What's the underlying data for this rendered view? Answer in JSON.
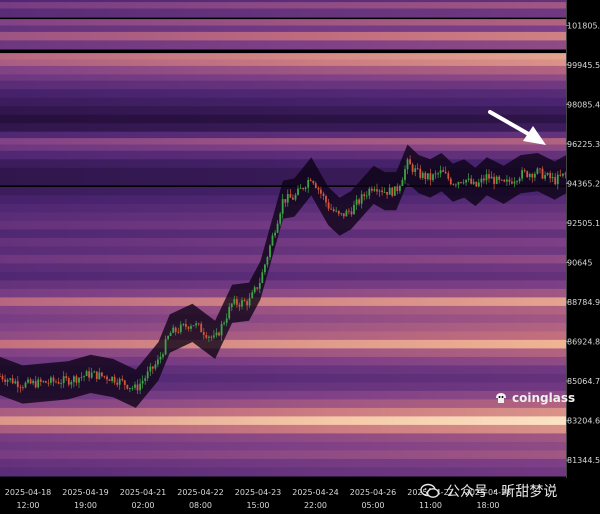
{
  "chart_data": {
    "type": "heatmap",
    "title": "",
    "xlabel": "",
    "ylabel": "",
    "ylim": [
      80500,
      103000
    ],
    "y_ticks": [
      "101805.6",
      "99945.5",
      "98085.4",
      "96225.3",
      "94365.2",
      "92505.1",
      "90645",
      "88784.9",
      "86924.8",
      "85064.7",
      "83204.6",
      "81344.5"
    ],
    "x_ticks": [
      {
        "date": "2025-04-18",
        "time": "12:00"
      },
      {
        "date": "2025-04-19",
        "time": "19:00"
      },
      {
        "date": "2025-04-21",
        "time": "02:00"
      },
      {
        "date": "2025-04-22",
        "time": "08:00"
      },
      {
        "date": "2025-04-23",
        "time": "15:00"
      },
      {
        "date": "2025-04-24",
        "time": "22:00"
      },
      {
        "date": "2025-04-26",
        "time": "05:00"
      },
      {
        "date": "2025-04-27",
        "time": "11:00"
      },
      {
        "date": "2025-04-28",
        "time": "18:00"
      }
    ],
    "price_series": {
      "name": "",
      "x": [
        0,
        4,
        8,
        12,
        16,
        20,
        24,
        28,
        30,
        34,
        38,
        41,
        44,
        46,
        48,
        50,
        52,
        55,
        58,
        60,
        62,
        66,
        68,
        70,
        72,
        74,
        76,
        78,
        80,
        82,
        84,
        86,
        89,
        92,
        95,
        98,
        100
      ],
      "y": [
        85300,
        84900,
        85000,
        85100,
        85400,
        85200,
        84700,
        86000,
        87300,
        87800,
        87000,
        88700,
        88800,
        89800,
        91700,
        93600,
        93700,
        94700,
        93300,
        92800,
        93100,
        94300,
        94000,
        94000,
        95300,
        94800,
        94600,
        94900,
        94400,
        94600,
        94200,
        94700,
        94300,
        94800,
        94900,
        94500,
        94800
      ]
    },
    "liquidation_bands": [
      {
        "price": 103000,
        "intensity": 0.3
      },
      {
        "price": 102700,
        "intensity": 0.5
      },
      {
        "price": 102400,
        "intensity": 0.35
      },
      {
        "price": 101900,
        "intensity": 0.55
      },
      {
        "price": 101600,
        "intensity": 0.4
      },
      {
        "price": 101300,
        "intensity": 0.65
      },
      {
        "price": 100900,
        "intensity": 0.45
      },
      {
        "price": 100300,
        "intensity": 0.75
      },
      {
        "price": 100000,
        "intensity": 0.7
      },
      {
        "price": 99700,
        "intensity": 0.55
      },
      {
        "price": 99300,
        "intensity": 0.45
      },
      {
        "price": 99000,
        "intensity": 0.35
      },
      {
        "price": 98600,
        "intensity": 0.25
      },
      {
        "price": 98200,
        "intensity": 0.2
      },
      {
        "price": 97800,
        "intensity": 0.15
      },
      {
        "price": 97400,
        "intensity": 0.1
      },
      {
        "price": 97000,
        "intensity": 0.15
      },
      {
        "price": 96600,
        "intensity": 0.3
      },
      {
        "price": 96300,
        "intensity": 0.55
      },
      {
        "price": 96000,
        "intensity": 0.45
      },
      {
        "price": 95700,
        "intensity": 0.3
      },
      {
        "price": 95300,
        "intensity": 0.2
      },
      {
        "price": 94900,
        "intensity": 0.15
      },
      {
        "price": 94500,
        "intensity": 0.15
      },
      {
        "price": 94000,
        "intensity": 0.2
      },
      {
        "price": 93600,
        "intensity": 0.25
      },
      {
        "price": 93200,
        "intensity": 0.3
      },
      {
        "price": 92800,
        "intensity": 0.35
      },
      {
        "price": 92400,
        "intensity": 0.4
      },
      {
        "price": 92000,
        "intensity": 0.3
      },
      {
        "price": 91600,
        "intensity": 0.4
      },
      {
        "price": 91200,
        "intensity": 0.35
      },
      {
        "price": 90800,
        "intensity": 0.45
      },
      {
        "price": 90400,
        "intensity": 0.35
      },
      {
        "price": 90000,
        "intensity": 0.3
      },
      {
        "price": 89600,
        "intensity": 0.4
      },
      {
        "price": 89200,
        "intensity": 0.5
      },
      {
        "price": 88800,
        "intensity": 0.75
      },
      {
        "price": 88400,
        "intensity": 0.55
      },
      {
        "price": 88000,
        "intensity": 0.5
      },
      {
        "price": 87600,
        "intensity": 0.55
      },
      {
        "price": 87200,
        "intensity": 0.6
      },
      {
        "price": 86800,
        "intensity": 0.8
      },
      {
        "price": 86400,
        "intensity": 0.55
      },
      {
        "price": 86000,
        "intensity": 0.45
      },
      {
        "price": 85600,
        "intensity": 0.35
      },
      {
        "price": 85200,
        "intensity": 0.3
      },
      {
        "price": 84800,
        "intensity": 0.35
      },
      {
        "price": 84400,
        "intensity": 0.45
      },
      {
        "price": 84000,
        "intensity": 0.55
      },
      {
        "price": 83600,
        "intensity": 0.7
      },
      {
        "price": 83200,
        "intensity": 0.95
      },
      {
        "price": 82800,
        "intensity": 0.7
      },
      {
        "price": 82400,
        "intensity": 0.5
      },
      {
        "price": 82000,
        "intensity": 0.45
      },
      {
        "price": 81600,
        "intensity": 0.5
      },
      {
        "price": 81200,
        "intensity": 0.4
      },
      {
        "price": 80800,
        "intensity": 0.35
      }
    ],
    "annotation": "arrow",
    "grid": false,
    "legend": "none"
  },
  "brand": {
    "name": "coinglass",
    "icon": "coinglass-logo-icon"
  },
  "watermark": {
    "text": "公众号 · 听甜梦说",
    "icon": "wechat-icon"
  },
  "colors": {
    "dark": "#10041f",
    "purple": "#4a2470",
    "mauve": "#7d3f86",
    "rose": "#c46f7e",
    "peach": "#f0b594",
    "cream": "#fff2d4",
    "candle_up": "#3fa34a",
    "candle_down": "#d2573e",
    "axis_text": "#d8d8d8"
  }
}
